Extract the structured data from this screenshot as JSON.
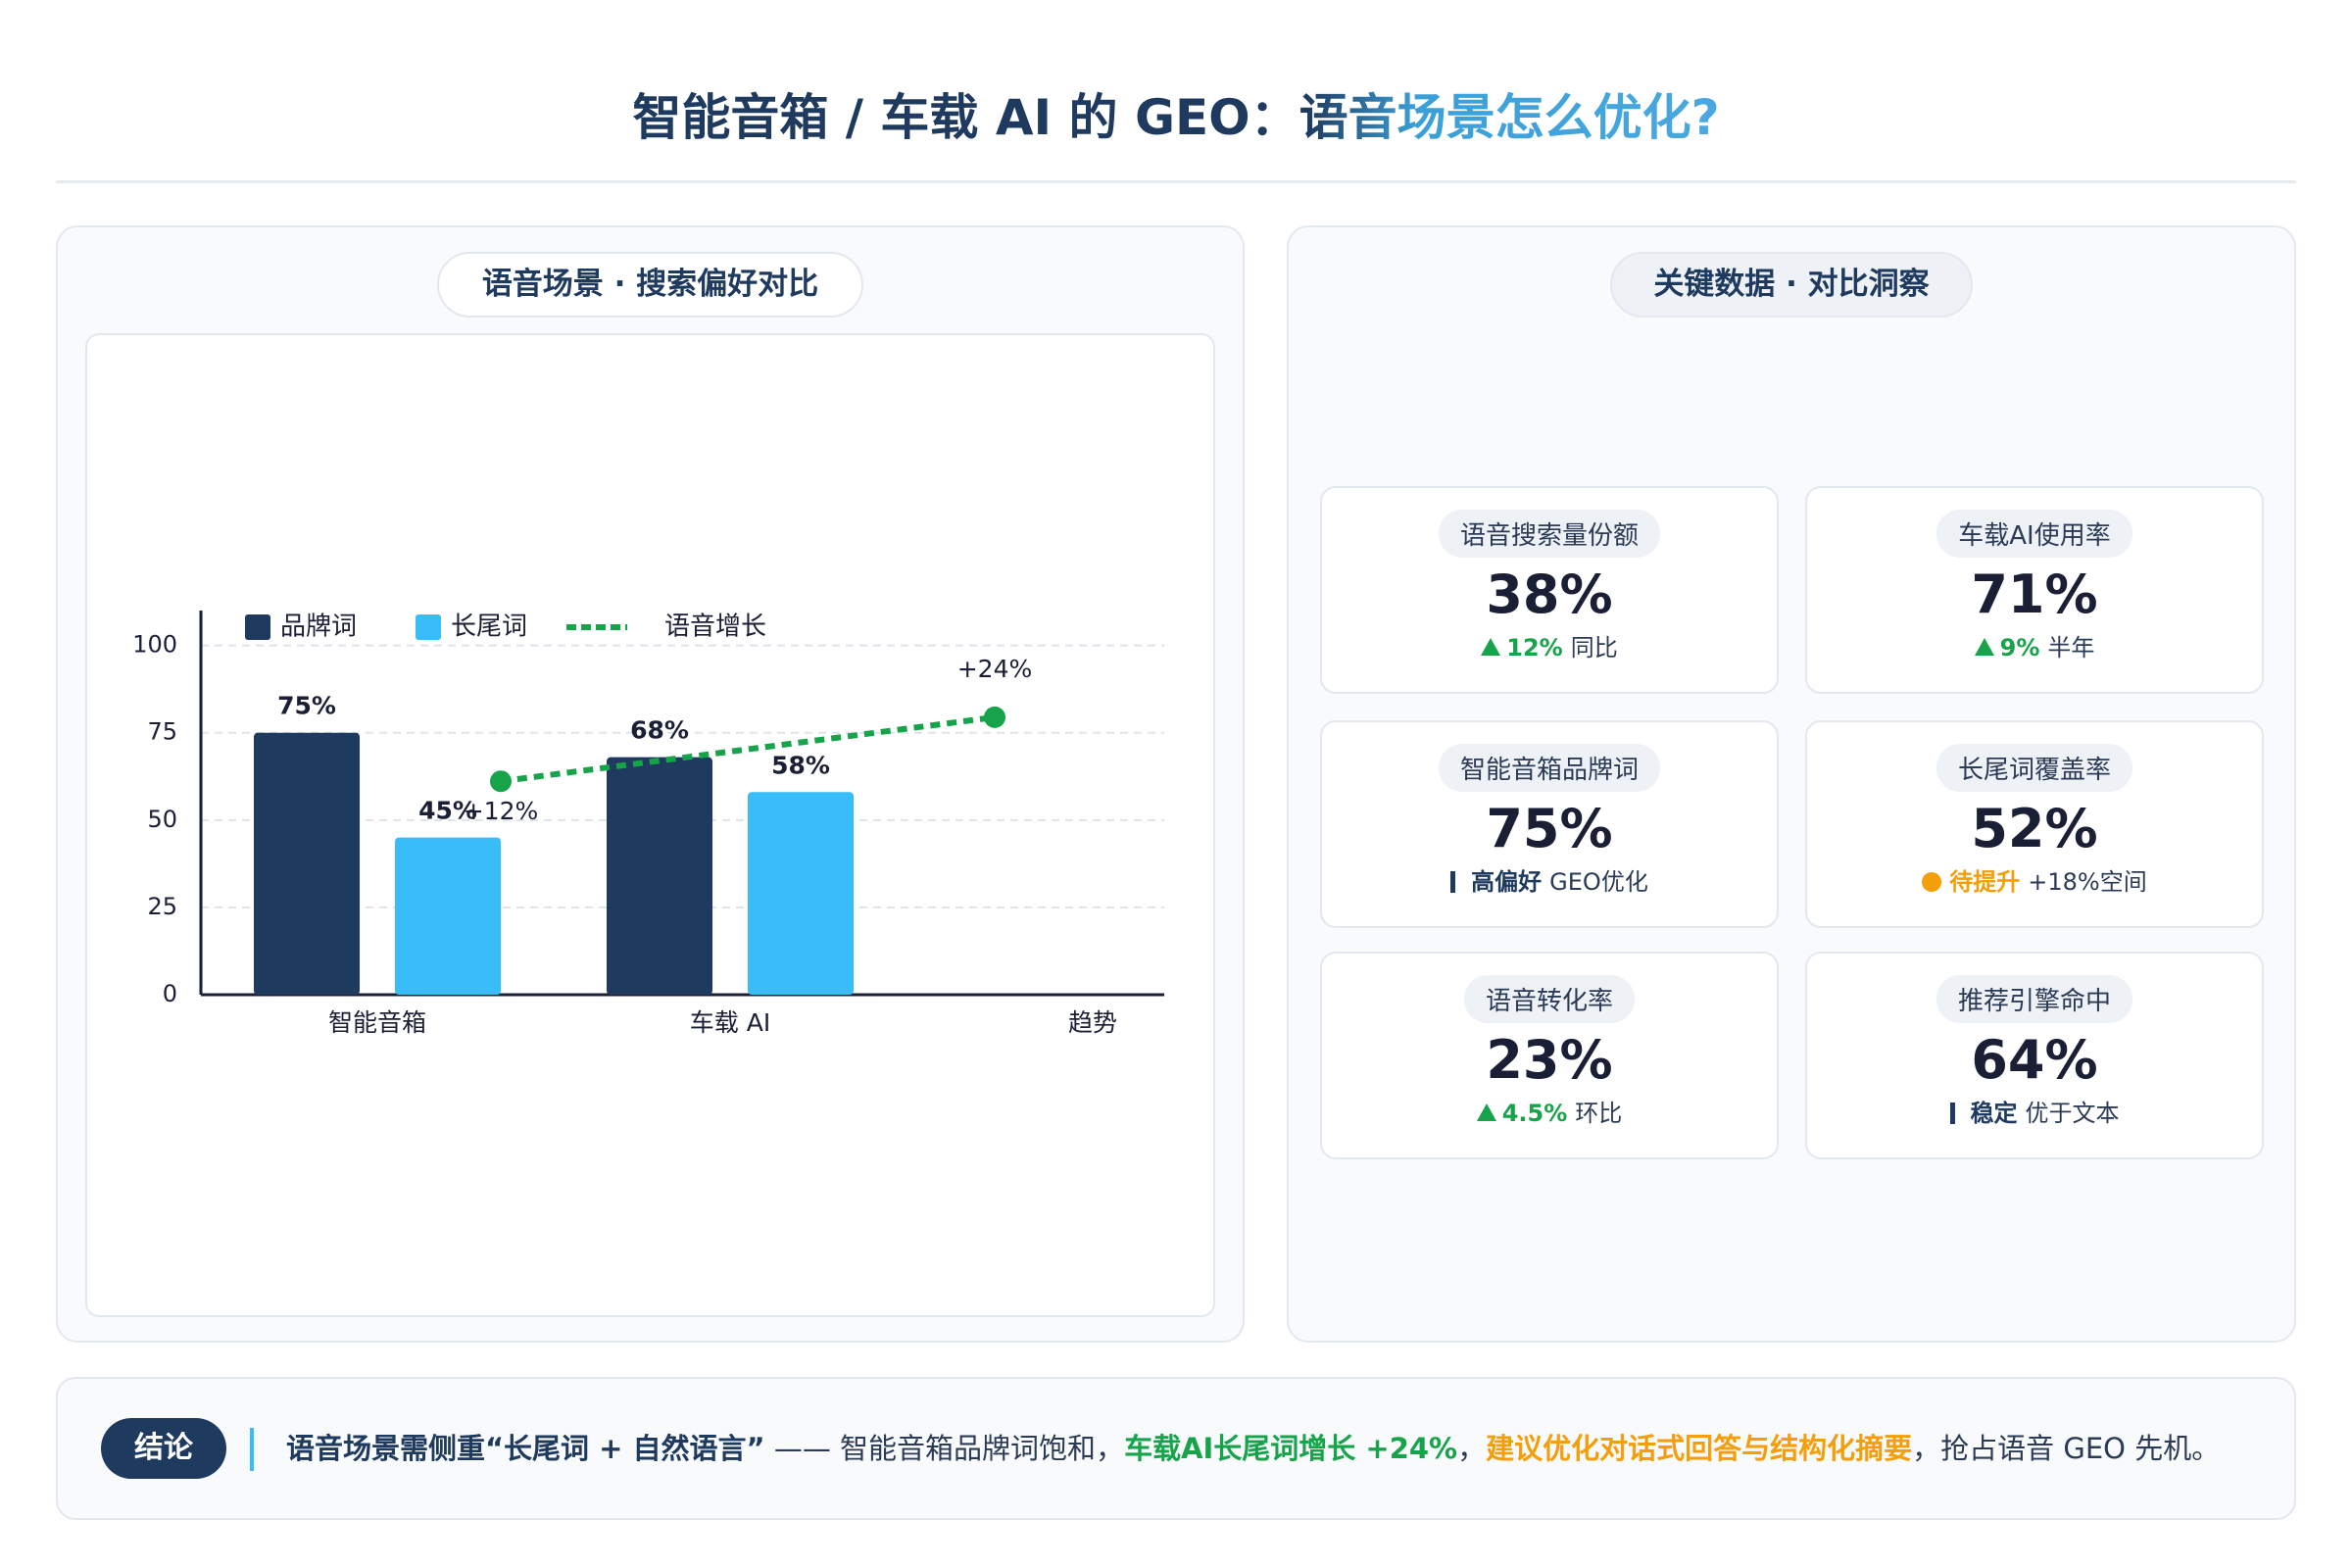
{
  "header": {
    "title": "智能音箱 / 车载 AI 的 GEO：语音场景怎么优化?"
  },
  "chart_data": {
    "type": "bar",
    "title": "语音场景 · 搜索偏好对比",
    "categories": [
      "智能音箱",
      "车载 AI",
      "趋势"
    ],
    "series": [
      {
        "name": "品牌词",
        "color": "#1f3a5f",
        "values": [
          75,
          68,
          null
        ],
        "value_labels": [
          "75%",
          "68%",
          null
        ]
      },
      {
        "name": "长尾词",
        "color": "#38bdf8",
        "values": [
          45,
          58,
          null
        ],
        "value_labels": [
          "45%",
          "58%",
          null
        ]
      },
      {
        "name": "语音增长",
        "type": "line",
        "axis": "y2",
        "color": "#16a34a",
        "values": [
          12,
          24,
          null
        ],
        "value_labels": [
          "+12%",
          "+24%",
          null
        ]
      }
    ],
    "ylim": [
      0,
      110
    ],
    "yticks": [
      0,
      25,
      50,
      75,
      100
    ],
    "y2lim": [
      -28,
      44
    ],
    "grid": true,
    "legend": "top-left"
  },
  "kpi": {
    "title": "关键数据 · 对比洞察",
    "cards": [
      {
        "label": "语音搜索量份额",
        "value": "38%",
        "badge": "12%",
        "note": "同比"
      },
      {
        "label": "车载AI使用率",
        "value": "71%",
        "badge": "9%",
        "note": "半年"
      },
      {
        "label": "智能音箱品牌词",
        "value": "75%",
        "badge": "高偏好",
        "note": "GEO优化"
      },
      {
        "label": "长尾词覆盖率",
        "value": "52%",
        "badge": "待提升",
        "note": "+18%空间"
      },
      {
        "label": "语音转化率",
        "value": "23%",
        "badge": "4.5%",
        "note": "环比"
      },
      {
        "label": "推荐引擎命中",
        "value": "64%",
        "badge": "稳定",
        "note": "优于文本"
      }
    ]
  },
  "conclusion": {
    "tag": "结论",
    "lead": "语音场景需侧重“长尾词 + 自然语言”",
    "text1": " —— 智能音箱品牌词饱和，",
    "green": "车载AI长尾词增长 +24%",
    "text2": "，",
    "orange": "建议优化对话式回答与结构化摘要",
    "text3": "，抢占语音 GEO 先机。"
  }
}
